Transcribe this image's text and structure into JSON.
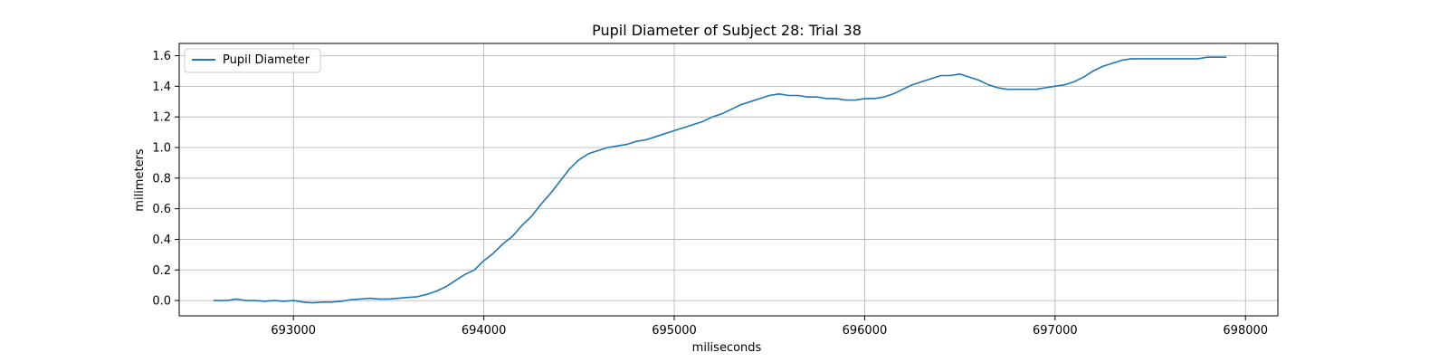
{
  "chart_data": {
    "type": "line",
    "title": "Pupil Diameter of Subject 28: Trial 38",
    "xlabel": "miliseconds",
    "ylabel": "milimeters",
    "xlim": [
      692400,
      698170
    ],
    "ylim": [
      -0.1,
      1.68
    ],
    "xticks": [
      693000,
      694000,
      695000,
      696000,
      697000,
      698000
    ],
    "yticks": [
      0.0,
      0.2,
      0.4,
      0.6,
      0.8,
      1.0,
      1.2,
      1.4,
      1.6
    ],
    "xtick_labels": [
      "693000",
      "694000",
      "695000",
      "696000",
      "697000",
      "698000"
    ],
    "ytick_labels": [
      "0.0",
      "0.2",
      "0.4",
      "0.6",
      "0.8",
      "1.0",
      "1.2",
      "1.4",
      "1.6"
    ],
    "grid": true,
    "legend_position": "upper-left",
    "series": [
      {
        "name": "Pupil Diameter",
        "color": "#1f77b4",
        "x": [
          692580,
          692650,
          692700,
          692750,
          692800,
          692850,
          692900,
          692950,
          693000,
          693050,
          693100,
          693150,
          693200,
          693250,
          693300,
          693350,
          693400,
          693450,
          693500,
          693550,
          693600,
          693650,
          693700,
          693750,
          693800,
          693850,
          693900,
          693950,
          694000,
          694050,
          694100,
          694150,
          694200,
          694250,
          694300,
          694350,
          694400,
          694450,
          694500,
          694550,
          694600,
          694650,
          694700,
          694750,
          694800,
          694850,
          694900,
          694950,
          695000,
          695050,
          695100,
          695150,
          695200,
          695250,
          695300,
          695350,
          695400,
          695450,
          695500,
          695550,
          695600,
          695650,
          695700,
          695750,
          695800,
          695850,
          695900,
          695950,
          696000,
          696050,
          696100,
          696150,
          696200,
          696250,
          696300,
          696350,
          696400,
          696450,
          696500,
          696550,
          696600,
          696650,
          696700,
          696750,
          696800,
          696850,
          696900,
          696950,
          697000,
          697050,
          697100,
          697150,
          697200,
          697250,
          697300,
          697350,
          697400,
          697450,
          697500,
          697550,
          697600,
          697650,
          697700,
          697750,
          697800,
          697850,
          697900
        ],
        "y": [
          0.0,
          0.0,
          0.01,
          0.0,
          0.0,
          -0.005,
          0.0,
          -0.005,
          0.0,
          -0.01,
          -0.015,
          -0.01,
          -0.01,
          -0.005,
          0.005,
          0.01,
          0.015,
          0.01,
          0.01,
          0.015,
          0.02,
          0.025,
          0.04,
          0.06,
          0.09,
          0.13,
          0.17,
          0.2,
          0.26,
          0.31,
          0.37,
          0.42,
          0.49,
          0.55,
          0.63,
          0.7,
          0.78,
          0.86,
          0.92,
          0.96,
          0.98,
          1.0,
          1.01,
          1.02,
          1.04,
          1.05,
          1.07,
          1.09,
          1.11,
          1.13,
          1.15,
          1.17,
          1.2,
          1.22,
          1.25,
          1.28,
          1.3,
          1.32,
          1.34,
          1.35,
          1.34,
          1.34,
          1.33,
          1.33,
          1.32,
          1.32,
          1.31,
          1.31,
          1.32,
          1.32,
          1.33,
          1.35,
          1.38,
          1.41,
          1.43,
          1.45,
          1.47,
          1.47,
          1.48,
          1.46,
          1.44,
          1.41,
          1.39,
          1.38,
          1.38,
          1.38,
          1.38,
          1.39,
          1.4,
          1.41,
          1.43,
          1.46,
          1.5,
          1.53,
          1.55,
          1.57,
          1.58,
          1.58,
          1.58,
          1.58,
          1.58,
          1.58,
          1.58,
          1.58,
          1.59,
          1.59,
          1.59
        ]
      }
    ]
  }
}
